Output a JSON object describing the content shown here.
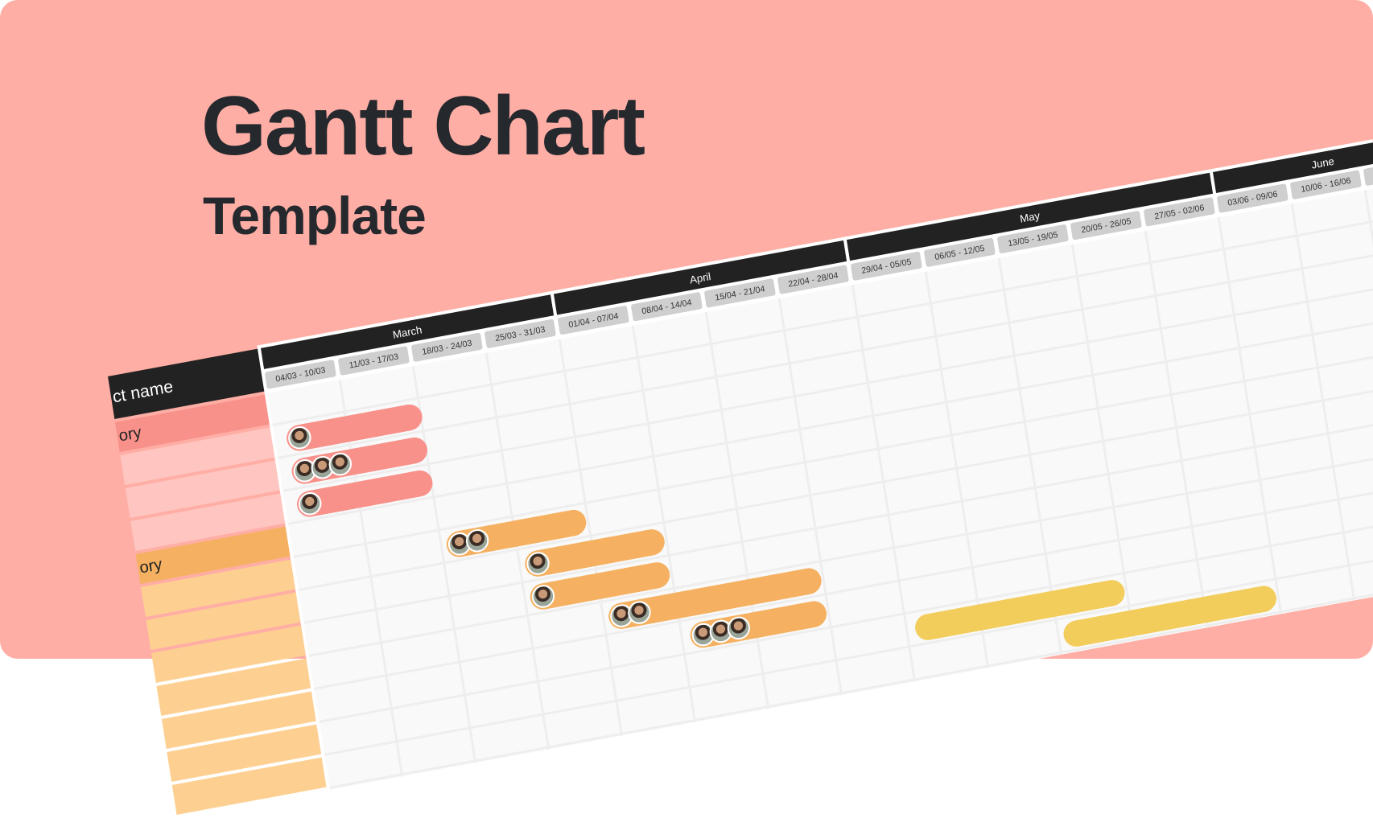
{
  "title": "Gantt Chart",
  "subtitle": "Template",
  "colors": {
    "background": "#ffaea5",
    "header": "#222222",
    "week_chip": "#cfcfcf",
    "category_red": "#f8918a",
    "task_red": "#ffc5c0",
    "category_orange": "#f5b161",
    "task_orange": "#fdd092",
    "bar_red": "#f8918a",
    "bar_orange": "#f5b161",
    "bar_yellow": "#f2cd5c"
  },
  "gantt": {
    "name_header": "ct name",
    "months": [
      {
        "label": "March",
        "weeks": 4
      },
      {
        "label": "April",
        "weeks": 4
      },
      {
        "label": "May",
        "weeks": 5
      },
      {
        "label": "June",
        "weeks": 3
      }
    ],
    "weeks": [
      "04/03 - 10/03",
      "11/03 - 17/03",
      "18/03 - 24/03",
      "25/03 - 31/03",
      "01/04 - 07/04",
      "08/04 - 14/04",
      "15/04 - 21/04",
      "22/04 - 28/04",
      "29/04 - 05/05",
      "06/05 - 12/05",
      "13/05 - 19/05",
      "20/05 - 26/05",
      "27/05 - 02/06",
      "03/06 - 09/06",
      "10/06 - 16/06",
      "17/"
    ],
    "rows": [
      {
        "label": "ory",
        "kind": "category",
        "color": "#f8918a"
      },
      {
        "label": "",
        "kind": "task",
        "color": "#ffc5c0"
      },
      {
        "label": "",
        "kind": "task",
        "color": "#ffc5c0"
      },
      {
        "label": "",
        "kind": "task",
        "color": "#ffc5c0"
      },
      {
        "label": "ory",
        "kind": "category",
        "color": "#f5b161"
      },
      {
        "label": "",
        "kind": "task",
        "color": "#fdd092"
      },
      {
        "label": "",
        "kind": "task",
        "color": "#fdd092"
      },
      {
        "label": "",
        "kind": "task",
        "color": "#fdd092"
      },
      {
        "label": "",
        "kind": "task",
        "color": "#fdd092"
      },
      {
        "label": "",
        "kind": "task",
        "color": "#fdd092"
      },
      {
        "label": "",
        "kind": "task",
        "color": "#fdd092"
      },
      {
        "label": "",
        "kind": "task",
        "color": "#fdd092"
      }
    ],
    "bars": [
      {
        "row": 1,
        "start": 0.15,
        "end": 2.0,
        "color": "#f8918a",
        "avatars": 1
      },
      {
        "row": 2,
        "start": 0.15,
        "end": 2.0,
        "color": "#f8918a",
        "avatars": 3
      },
      {
        "row": 3,
        "start": 0.15,
        "end": 2.0,
        "color": "#f8918a",
        "avatars": 1
      },
      {
        "row": 5,
        "start": 2.05,
        "end": 3.96,
        "color": "#f5b161",
        "avatars": 2
      },
      {
        "row": 6,
        "start": 3.05,
        "end": 4.96,
        "color": "#f5b161",
        "avatars": 1
      },
      {
        "row": 7,
        "start": 3.05,
        "end": 4.96,
        "color": "#f5b161",
        "avatars": 1
      },
      {
        "row": 8,
        "start": 4.05,
        "end": 6.96,
        "color": "#f5b161",
        "avatars": 2
      },
      {
        "row": 9,
        "start": 5.1,
        "end": 6.96,
        "color": "#f5b161",
        "avatars": 3
      },
      {
        "row": 10,
        "start": 8.1,
        "end": 10.96,
        "color": "#f2cd5c",
        "avatars": 0
      },
      {
        "row": 11,
        "start": 10.05,
        "end": 12.96,
        "color": "#f2cd5c",
        "avatars": 0
      }
    ]
  }
}
